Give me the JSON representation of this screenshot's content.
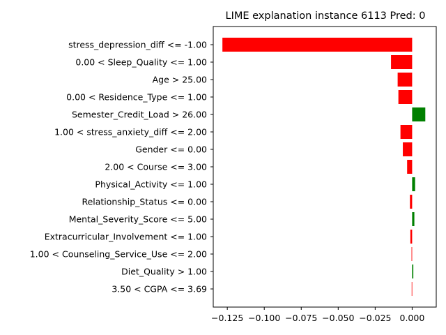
{
  "chart_data": {
    "type": "bar",
    "orientation": "horizontal",
    "title": "LIME explanation instance 6113 Pred: 0",
    "xlabel": "",
    "ylabel": "",
    "xlim": [
      -0.1345,
      0.0163
    ],
    "xticks": [
      -0.125,
      -0.1,
      -0.075,
      -0.05,
      -0.025,
      0.0
    ],
    "xtick_labels": [
      "−0.125",
      "−0.100",
      "−0.075",
      "−0.050",
      "−0.025",
      "0.000"
    ],
    "grid": false,
    "colors": {
      "positive": "#008000",
      "negative": "#ff0000"
    },
    "categories": [
      "stress_depression_diff <= -1.00",
      "0.00 < Sleep_Quality <= 1.00",
      "Age > 25.00",
      "0.00 < Residence_Type <= 1.00",
      "Semester_Credit_Load > 26.00",
      "1.00 < stress_anxiety_diff <= 2.00",
      "Gender <= 0.00",
      "2.00 < Course <= 3.00",
      "Physical_Activity <= 1.00",
      "Relationship_Status <= 0.00",
      "Mental_Severity_Score <= 5.00",
      "Extracurricular_Involvement <= 1.00",
      "1.00 < Counseling_Service_Use <= 2.00",
      "Diet_Quality > 1.00",
      "3.50 < CGPA <= 3.69"
    ],
    "values": [
      -0.1283,
      -0.0143,
      -0.0098,
      -0.0093,
      0.0089,
      -0.0079,
      -0.0063,
      -0.0034,
      0.002,
      -0.0015,
      0.0015,
      -0.0012,
      -0.0004,
      0.0008,
      -0.0003
    ]
  }
}
